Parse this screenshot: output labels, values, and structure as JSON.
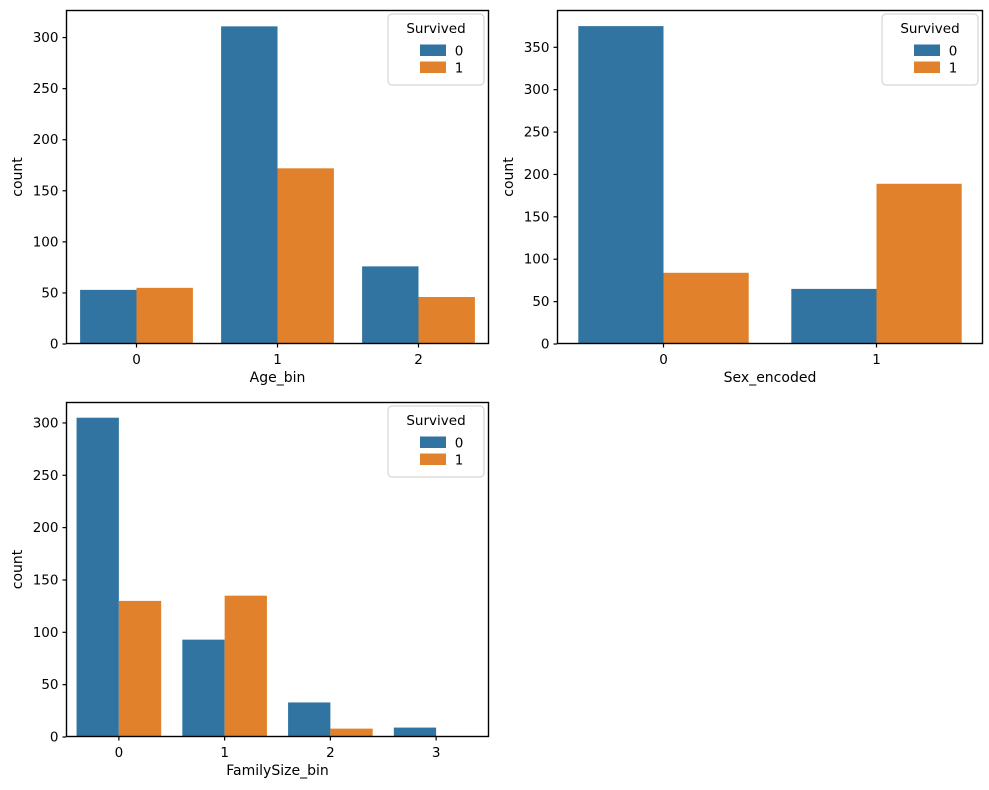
{
  "figure": {
    "background": "#ffffff",
    "axis_color": "#000000",
    "text_color": "#000000"
  },
  "colors": {
    "survived_0": "#3274a1",
    "survived_1": "#e1812c",
    "legend_border": "#cccccc",
    "legend_fill": "#ffffff"
  },
  "legend": {
    "title": "Survived",
    "entries": [
      {
        "label": "0",
        "color": "#3274a1"
      },
      {
        "label": "1",
        "color": "#e1812c"
      }
    ],
    "position": "upper right"
  },
  "chart_data": [
    {
      "type": "bar",
      "title": "",
      "xlabel": "Age_bin",
      "ylabel": "count",
      "categories": [
        "0",
        "1",
        "2"
      ],
      "series": [
        {
          "name": "0",
          "color": "#3274a1",
          "values": [
            53,
            311,
            76
          ]
        },
        {
          "name": "1",
          "color": "#e1812c",
          "values": [
            55,
            172,
            46
          ]
        }
      ],
      "ylim": [
        0,
        327
      ],
      "yticks": [
        0,
        50,
        100,
        150,
        200,
        250,
        300
      ],
      "grid": false,
      "legend": true,
      "legend_position": "upper right"
    },
    {
      "type": "bar",
      "title": "",
      "xlabel": "Sex_encoded",
      "ylabel": "count",
      "categories": [
        "0",
        "1"
      ],
      "series": [
        {
          "name": "0",
          "color": "#3274a1",
          "values": [
            375,
            65
          ]
        },
        {
          "name": "1",
          "color": "#e1812c",
          "values": [
            84,
            189
          ]
        }
      ],
      "ylim": [
        0,
        394
      ],
      "yticks": [
        0,
        50,
        100,
        150,
        200,
        250,
        300,
        350
      ],
      "grid": false,
      "legend": true,
      "legend_position": "upper right"
    },
    {
      "type": "bar",
      "title": "",
      "xlabel": "FamilySize_bin",
      "ylabel": "count",
      "categories": [
        "0",
        "1",
        "2",
        "3"
      ],
      "series": [
        {
          "name": "0",
          "color": "#3274a1",
          "values": [
            305,
            93,
            33,
            9
          ]
        },
        {
          "name": "1",
          "color": "#e1812c",
          "values": [
            130,
            135,
            8,
            0
          ]
        }
      ],
      "ylim": [
        0,
        320
      ],
      "yticks": [
        0,
        50,
        100,
        150,
        200,
        250,
        300
      ],
      "grid": false,
      "legend": true,
      "legend_position": "upper right"
    }
  ]
}
